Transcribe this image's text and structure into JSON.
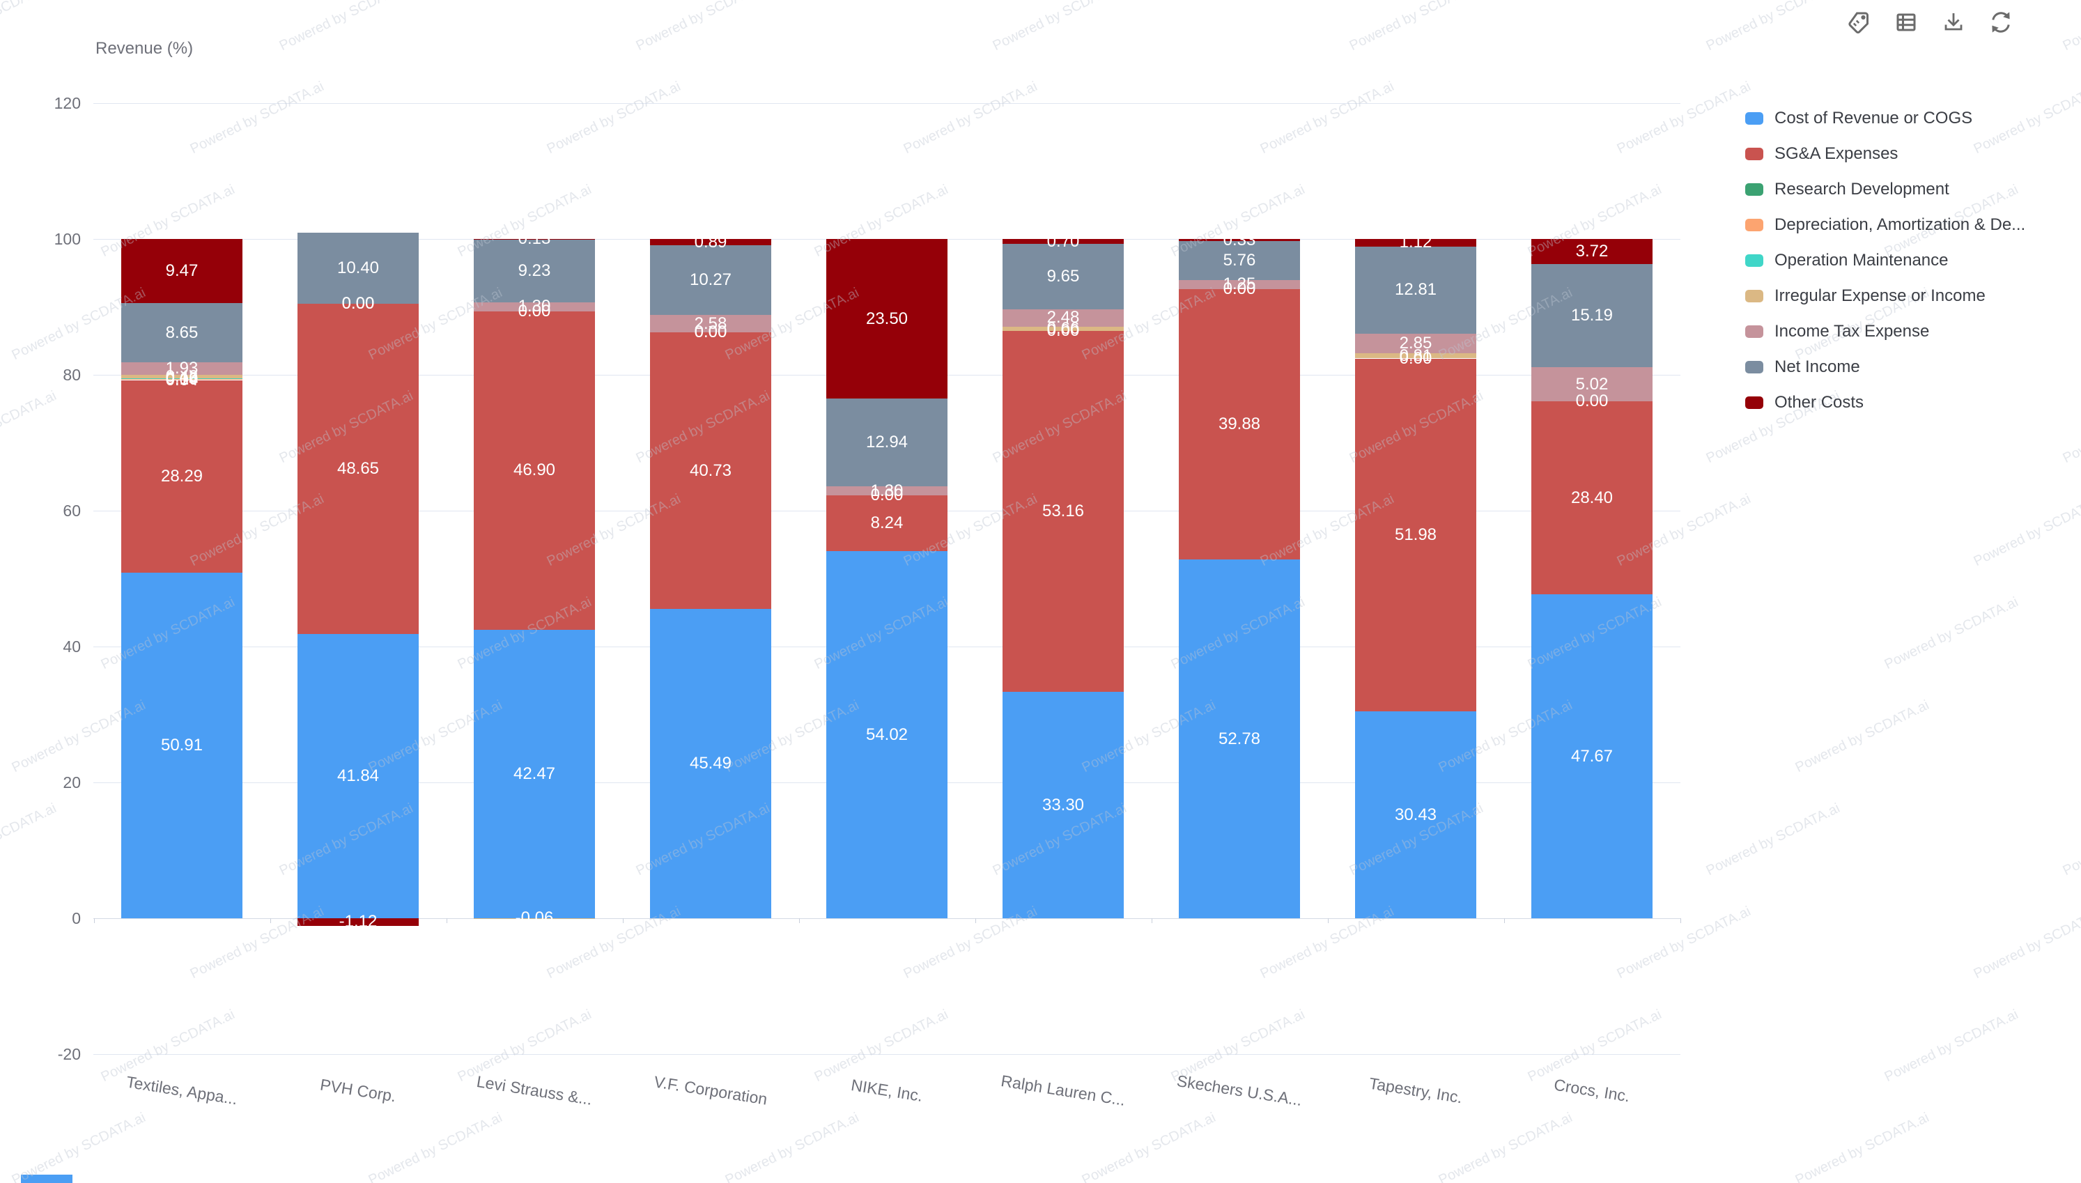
{
  "watermark": {
    "text": "Powered by SCDATA.ai"
  },
  "toolbar": {
    "icons": [
      {
        "name": "tag-icon"
      },
      {
        "name": "table-icon"
      },
      {
        "name": "download-icon"
      },
      {
        "name": "refresh-icon"
      }
    ]
  },
  "chart_data": {
    "type": "bar",
    "stacked": true,
    "title": "Revenue (%)",
    "xlabel": "",
    "ylabel": "Revenue (%)",
    "ylim": [
      -20,
      120
    ],
    "yticks": [
      120,
      100,
      80,
      60,
      40,
      20,
      0,
      -20
    ],
    "grid": true,
    "legend_position": "right",
    "label_format": "two_decimals",
    "categories": [
      "Textiles, Appa...",
      "PVH Corp.",
      "Levi Strauss &...",
      "V.F. Corporation",
      "NIKE, Inc.",
      "Ralph Lauren C...",
      "Skechers U.S.A...",
      "Tapestry, Inc.",
      "Crocs, Inc."
    ],
    "series": [
      {
        "name": "Cost of Revenue or COGS",
        "color": "#4B9EF4",
        "values": [
          50.91,
          41.84,
          42.47,
          45.49,
          54.02,
          33.3,
          52.78,
          30.43,
          47.67
        ]
      },
      {
        "name": "SG&A Expenses",
        "color": "#C9534F",
        "values": [
          28.29,
          48.65,
          46.9,
          40.73,
          8.24,
          53.16,
          39.88,
          51.98,
          28.4
        ]
      },
      {
        "name": "Research Development",
        "color": "#3BA272",
        "values": [
          0.04,
          null,
          null,
          null,
          null,
          null,
          null,
          null,
          null
        ]
      },
      {
        "name": "Depreciation, Amortization & De...",
        "color": "#FCA470",
        "values": [
          0.1,
          null,
          0.0,
          0.0,
          null,
          0.0,
          0.0,
          0.0,
          null
        ]
      },
      {
        "name": "Operation Maintenance",
        "color": "#40D6C8",
        "values": [
          0.18,
          null,
          null,
          null,
          null,
          null,
          null,
          null,
          null
        ]
      },
      {
        "name": "Irregular Expense or Income",
        "color": "#DBB884",
        "values": [
          0.43,
          0.0,
          -0.06,
          0.0,
          0.0,
          0.66,
          null,
          0.81,
          0.0
        ]
      },
      {
        "name": "Income Tax Expense",
        "color": "#C5939B",
        "values": [
          1.93,
          0.0,
          1.3,
          2.58,
          1.3,
          2.48,
          1.25,
          2.85,
          5.02
        ]
      },
      {
        "name": "Net Income",
        "color": "#7B8DA0",
        "values": [
          8.65,
          10.4,
          9.23,
          10.27,
          12.94,
          9.65,
          5.76,
          12.81,
          15.19
        ]
      },
      {
        "name": "Other Costs",
        "color": "#950008",
        "values": [
          9.47,
          -1.12,
          0.13,
          0.89,
          23.5,
          0.7,
          0.33,
          1.12,
          3.72
        ]
      }
    ]
  }
}
